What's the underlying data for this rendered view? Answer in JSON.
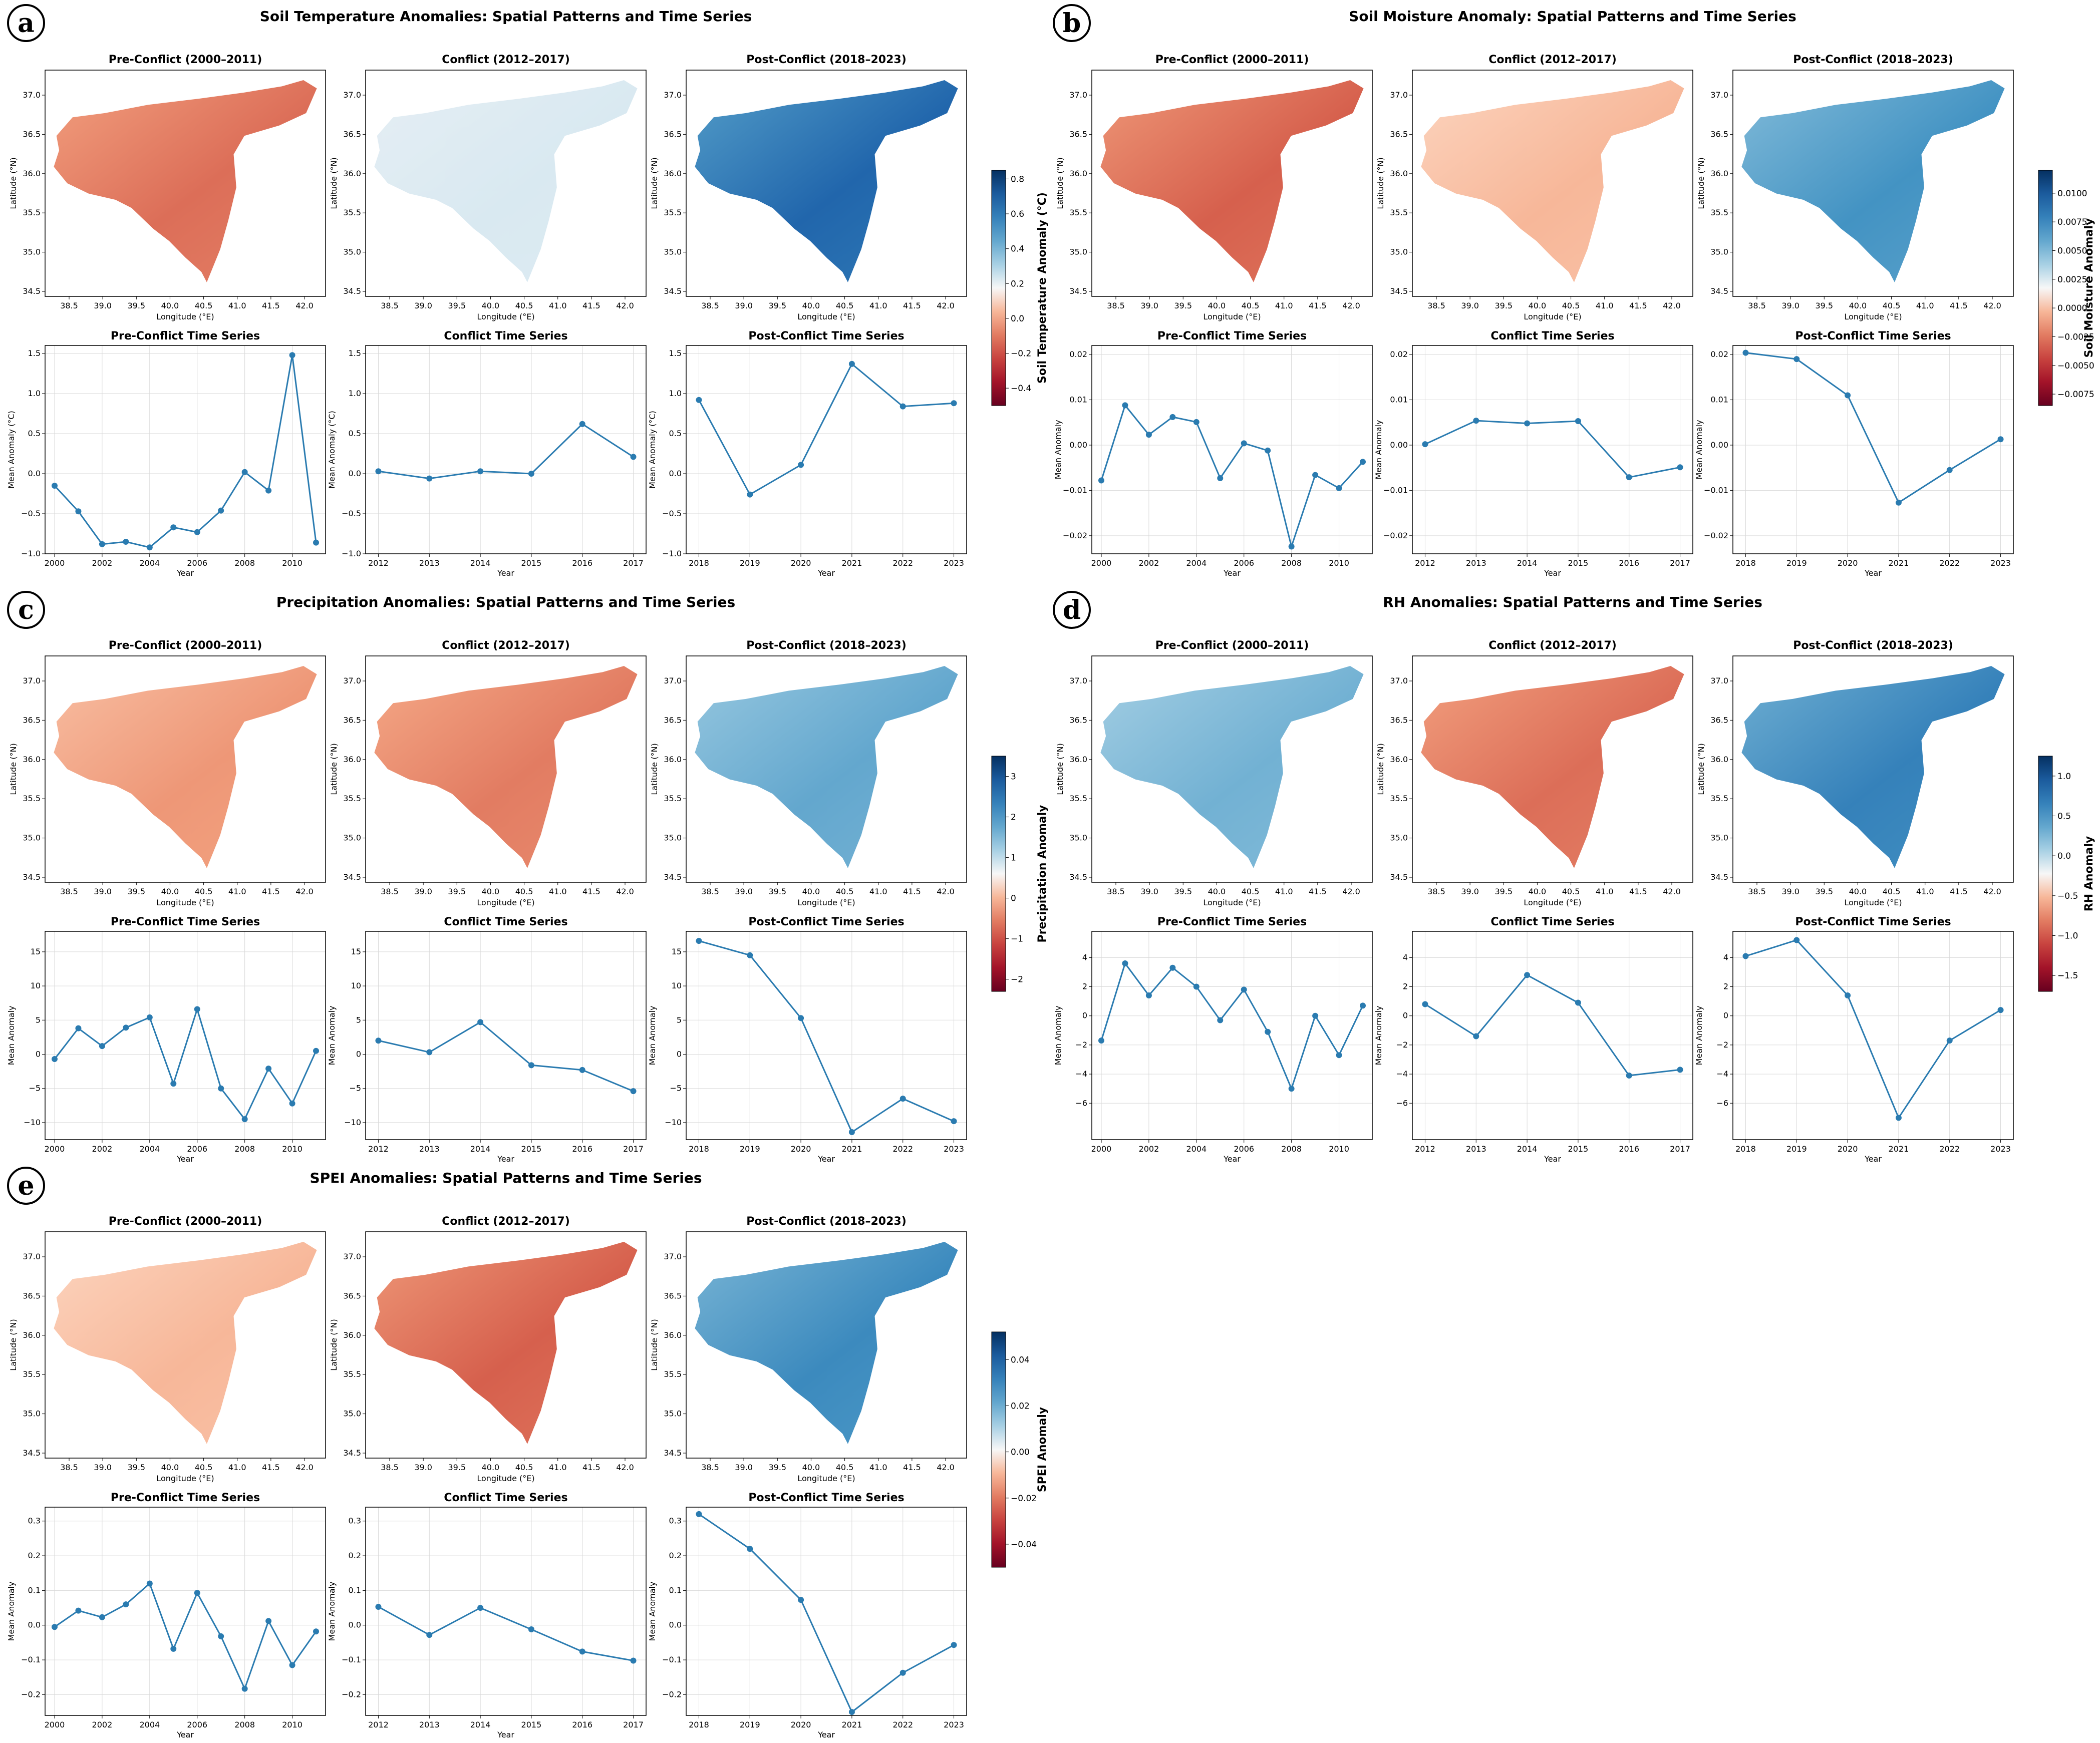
{
  "colors": {
    "line": "#2a7bb0",
    "grid": "#d9d9d9",
    "cmap_neg": "#67001f",
    "cmap_mid": "#f7f7f7",
    "cmap_pos": "#053061"
  },
  "chart_data": [
    {
      "type": "line",
      "panel": "a",
      "title": "Soil Temperature Anomalies: Spatial Patterns and Time Series",
      "map_titles": [
        "Pre-Conflict (2000–2011)",
        "Conflict (2012–2017)",
        "Post-Conflict (2018–2023)"
      ],
      "map_xlabel": "Longitude (°E)",
      "map_ylabel": "Latitude (°N)",
      "map_xticks": [
        "38.5",
        "39.0",
        "39.5",
        "40.0",
        "40.5",
        "41.0",
        "41.5",
        "42.0"
      ],
      "map_yticks": [
        "34.5",
        "35.0",
        "35.5",
        "36.0",
        "36.5",
        "37.0"
      ],
      "map_fill": [
        -0.45,
        0.08,
        0.75
      ],
      "colorbar": {
        "label": "Soil Temperature Anomaly (°C)",
        "range": [
          -0.5,
          0.85
        ],
        "ticks": [
          "0.8",
          "0.6",
          "0.4",
          "0.2",
          "0.0",
          "−0.2",
          "−0.4"
        ],
        "tick_values": [
          0.8,
          0.6,
          0.4,
          0.2,
          0.0,
          -0.2,
          -0.4
        ]
      },
      "series_titles": [
        "Pre-Conflict Time Series",
        "Conflict Time Series",
        "Post-Conflict Time Series"
      ],
      "xlabel": "Year",
      "ylabel": "Mean Anomaly (°C)",
      "ylim": [
        -1.0,
        1.6
      ],
      "yticks": [
        -1.0,
        -0.5,
        0.0,
        0.5,
        1.0,
        1.5
      ],
      "ytick_labels": [
        "−1.0",
        "−0.5",
        "0.0",
        "0.5",
        "1.0",
        "1.5"
      ],
      "series": [
        {
          "name": "Pre-Conflict",
          "x": [
            2000,
            2001,
            2002,
            2003,
            2004,
            2005,
            2006,
            2007,
            2008,
            2009,
            2010,
            2011
          ],
          "values": [
            -0.15,
            -0.47,
            -0.88,
            -0.85,
            -0.92,
            -0.67,
            -0.73,
            -0.46,
            0.02,
            -0.21,
            1.48,
            -0.86
          ],
          "xticks": [
            2000,
            2002,
            2004,
            2006,
            2008,
            2010
          ],
          "xticks_labels": [
            "2000",
            "2002",
            "2004",
            "2006",
            "2008",
            "2010"
          ],
          "xlim": [
            1999.6,
            2011.4
          ]
        },
        {
          "name": "Conflict",
          "x": [
            2012,
            2013,
            2014,
            2015,
            2016,
            2017
          ],
          "values": [
            0.03,
            -0.06,
            0.03,
            0.0,
            0.62,
            0.21
          ],
          "xticks": [
            2012,
            2013,
            2014,
            2015,
            2016,
            2017
          ],
          "xticks_labels": [
            "2012",
            "2013",
            "2014",
            "2015",
            "2016",
            "2017"
          ],
          "xlim": [
            2011.75,
            2017.25
          ]
        },
        {
          "name": "Post-Conflict",
          "x": [
            2018,
            2019,
            2020,
            2021,
            2022,
            2023
          ],
          "values": [
            0.92,
            -0.26,
            0.11,
            1.37,
            0.84,
            0.88
          ],
          "xticks": [
            2018,
            2019,
            2020,
            2021,
            2022,
            2023
          ],
          "xticks_labels": [
            "2018",
            "2019",
            "2020",
            "2021",
            "2022",
            "2023"
          ],
          "xlim": [
            2017.75,
            2023.25
          ]
        }
      ]
    },
    {
      "type": "line",
      "panel": "b",
      "title": "Soil Moisture Anomaly: Spatial Patterns and Time Series",
      "map_titles": [
        "Pre-Conflict (2000–2011)",
        "Conflict (2012–2017)",
        "Post-Conflict (2018–2023)"
      ],
      "map_xlabel": "Longitude (°E)",
      "map_ylabel": "Latitude (°N)",
      "map_xticks": [
        "38.5",
        "39.0",
        "39.5",
        "40.0",
        "40.5",
        "41.0",
        "41.5",
        "42.0"
      ],
      "map_yticks": [
        "34.5",
        "35.0",
        "35.5",
        "36.0",
        "36.5",
        "37.0"
      ],
      "map_fill": [
        -0.5,
        -0.2,
        0.5
      ],
      "colorbar": {
        "label": "Soil Moisture Anomaly",
        "range": [
          -0.0085,
          0.012
        ],
        "ticks": [
          "0.0100",
          "0.0075",
          "0.0050",
          "0.0025",
          "0.0000",
          "−0.0025",
          "−0.0050",
          "−0.0075"
        ],
        "tick_values": [
          0.01,
          0.0075,
          0.005,
          0.0025,
          0.0,
          -0.0025,
          -0.005,
          -0.0075
        ]
      },
      "series_titles": [
        "Pre-Conflict Time Series",
        "Conflict Time Series",
        "Post-Conflict Time Series"
      ],
      "xlabel": "Year",
      "ylabel": "Mean Anomaly",
      "ylim": [
        -0.024,
        0.022
      ],
      "yticks": [
        -0.02,
        -0.01,
        0.0,
        0.01,
        0.02
      ],
      "ytick_labels": [
        "−0.02",
        "−0.01",
        "0.00",
        "0.01",
        "0.02"
      ],
      "series": [
        {
          "name": "Pre-Conflict",
          "x": [
            2000,
            2001,
            2002,
            2003,
            2004,
            2005,
            2006,
            2007,
            2008,
            2009,
            2010,
            2011
          ],
          "values": [
            -0.0078,
            0.0088,
            0.0023,
            0.0062,
            0.0051,
            -0.0073,
            0.0004,
            -0.0012,
            -0.0224,
            -0.0066,
            -0.0095,
            -0.0037
          ],
          "xticks": [
            2000,
            2002,
            2004,
            2006,
            2008,
            2010
          ],
          "xticks_labels": [
            "2000",
            "2002",
            "2004",
            "2006",
            "2008",
            "2010"
          ],
          "xlim": [
            1999.6,
            2011.4
          ]
        },
        {
          "name": "Conflict",
          "x": [
            2012,
            2013,
            2014,
            2015,
            2016,
            2017
          ],
          "values": [
            0.0002,
            0.0054,
            0.0048,
            0.0053,
            -0.0071,
            -0.0049
          ],
          "xticks": [
            2012,
            2013,
            2014,
            2015,
            2016,
            2017
          ],
          "xticks_labels": [
            "2012",
            "2013",
            "2014",
            "2015",
            "2016",
            "2017"
          ],
          "xlim": [
            2011.75,
            2017.25
          ]
        },
        {
          "name": "Post-Conflict",
          "x": [
            2018,
            2019,
            2020,
            2021,
            2022,
            2023
          ],
          "values": [
            0.0204,
            0.019,
            0.011,
            -0.0127,
            -0.0055,
            0.0013
          ],
          "xticks": [
            2018,
            2019,
            2020,
            2021,
            2022,
            2023
          ],
          "xticks_labels": [
            "2018",
            "2019",
            "2020",
            "2021",
            "2022",
            "2023"
          ],
          "xlim": [
            2017.75,
            2023.25
          ]
        }
      ]
    },
    {
      "type": "line",
      "panel": "c",
      "title": "Precipitation Anomalies: Spatial Patterns and Time Series",
      "map_titles": [
        "Pre-Conflict (2000–2011)",
        "Conflict (2012–2017)",
        "Post-Conflict (2018–2023)"
      ],
      "map_xlabel": "Longitude (°E)",
      "map_ylabel": "Latitude (°N)",
      "map_xticks": [
        "38.5",
        "39.0",
        "39.5",
        "40.0",
        "40.5",
        "41.0",
        "41.5",
        "42.0"
      ],
      "map_yticks": [
        "34.5",
        "35.0",
        "35.5",
        "36.0",
        "36.5",
        "37.0"
      ],
      "map_fill": [
        -0.3,
        -0.4,
        0.4
      ],
      "colorbar": {
        "label": "Precipitation Anomaly",
        "range": [
          -2.3,
          3.5
        ],
        "ticks": [
          "3",
          "2",
          "1",
          "0",
          "−1",
          "−2"
        ],
        "tick_values": [
          3,
          2,
          1,
          0,
          -1,
          -2
        ]
      },
      "series_titles": [
        "Pre-Conflict Time Series",
        "Conflict Time Series",
        "Post-Conflict Time Series"
      ],
      "xlabel": "Year",
      "ylabel": "Mean Anomaly",
      "ylim": [
        -12.5,
        18.0
      ],
      "yticks": [
        -10,
        -5,
        0,
        5,
        10,
        15
      ],
      "ytick_labels": [
        "−10",
        "−5",
        "0",
        "5",
        "10",
        "15"
      ],
      "series": [
        {
          "name": "Pre-Conflict",
          "x": [
            2000,
            2001,
            2002,
            2003,
            2004,
            2005,
            2006,
            2007,
            2008,
            2009,
            2010,
            2011
          ],
          "values": [
            -0.7,
            3.8,
            1.2,
            3.9,
            5.4,
            -4.3,
            6.6,
            -5.0,
            -9.5,
            -2.1,
            -7.2,
            0.5
          ],
          "xticks": [
            2000,
            2002,
            2004,
            2006,
            2008,
            2010
          ],
          "xticks_labels": [
            "2000",
            "2002",
            "2004",
            "2006",
            "2008",
            "2010"
          ],
          "xlim": [
            1999.6,
            2011.4
          ]
        },
        {
          "name": "Conflict",
          "x": [
            2012,
            2013,
            2014,
            2015,
            2016,
            2017
          ],
          "values": [
            2.0,
            0.3,
            4.7,
            -1.6,
            -2.3,
            -5.4
          ],
          "xticks": [
            2012,
            2013,
            2014,
            2015,
            2016,
            2017
          ],
          "xticks_labels": [
            "2012",
            "2013",
            "2014",
            "2015",
            "2016",
            "2017"
          ],
          "xlim": [
            2011.75,
            2017.25
          ]
        },
        {
          "name": "Post-Conflict",
          "x": [
            2018,
            2019,
            2020,
            2021,
            2022,
            2023
          ],
          "values": [
            16.6,
            14.5,
            5.3,
            -11.4,
            -6.5,
            -9.8
          ],
          "xticks": [
            2018,
            2019,
            2020,
            2021,
            2022,
            2023
          ],
          "xticks_labels": [
            "2018",
            "2019",
            "2020",
            "2021",
            "2022",
            "2023"
          ],
          "xlim": [
            2017.75,
            2023.25
          ]
        }
      ]
    },
    {
      "type": "line",
      "panel": "d",
      "title": "RH Anomalies: Spatial Patterns and Time Series",
      "map_titles": [
        "Pre-Conflict (2000–2011)",
        "Conflict (2012–2017)",
        "Post-Conflict (2018–2023)"
      ],
      "map_xlabel": "Longitude (°E)",
      "map_ylabel": "Latitude (°N)",
      "map_xticks": [
        "38.5",
        "39.0",
        "39.5",
        "40.0",
        "40.5",
        "41.0",
        "41.5",
        "42.0"
      ],
      "map_yticks": [
        "34.5",
        "35.0",
        "35.5",
        "36.0",
        "36.5",
        "37.0"
      ],
      "map_fill": [
        0.35,
        -0.45,
        0.6
      ],
      "colorbar": {
        "label": "RH Anomaly",
        "range": [
          -1.7,
          1.25
        ],
        "ticks": [
          "1.0",
          "0.5",
          "0.0",
          "−0.5",
          "−1.0",
          "−1.5"
        ],
        "tick_values": [
          1.0,
          0.5,
          0.0,
          -0.5,
          -1.0,
          -1.5
        ]
      },
      "series_titles": [
        "Pre-Conflict Time Series",
        "Conflict Time Series",
        "Post-Conflict Time Series"
      ],
      "xlabel": "Year",
      "ylabel": "Mean Anomaly",
      "ylim": [
        -8.5,
        5.8
      ],
      "yticks": [
        -6,
        -4,
        -2,
        0,
        2,
        4
      ],
      "ytick_labels": [
        "−6",
        "−4",
        "−2",
        "0",
        "2",
        "4"
      ],
      "series": [
        {
          "name": "Pre-Conflict",
          "x": [
            2000,
            2001,
            2002,
            2003,
            2004,
            2005,
            2006,
            2007,
            2008,
            2009,
            2010,
            2011
          ],
          "values": [
            -1.7,
            3.6,
            1.4,
            3.3,
            2.0,
            -0.3,
            1.8,
            -1.1,
            -5.0,
            0.0,
            -2.7,
            0.7
          ],
          "xticks": [
            2000,
            2002,
            2004,
            2006,
            2008,
            2010
          ],
          "xticks_labels": [
            "2000",
            "2002",
            "2004",
            "2006",
            "2008",
            "2010"
          ],
          "xlim": [
            1999.6,
            2011.4
          ]
        },
        {
          "name": "Conflict",
          "x": [
            2012,
            2013,
            2014,
            2015,
            2016,
            2017
          ],
          "values": [
            0.8,
            -1.4,
            2.8,
            0.9,
            -4.1,
            -3.7
          ],
          "xticks": [
            2012,
            2013,
            2014,
            2015,
            2016,
            2017
          ],
          "xticks_labels": [
            "2012",
            "2013",
            "2014",
            "2015",
            "2016",
            "2017"
          ],
          "xlim": [
            2011.75,
            2017.25
          ]
        },
        {
          "name": "Post-Conflict",
          "x": [
            2018,
            2019,
            2020,
            2021,
            2022,
            2023
          ],
          "values": [
            4.1,
            5.2,
            1.4,
            -7.0,
            -1.7,
            0.4
          ],
          "xticks": [
            2018,
            2019,
            2020,
            2021,
            2022,
            2023
          ],
          "xticks_labels": [
            "2018",
            "2019",
            "2020",
            "2021",
            "2022",
            "2023"
          ],
          "xlim": [
            2017.75,
            2023.25
          ]
        }
      ]
    },
    {
      "type": "line",
      "panel": "e",
      "title": "SPEI Anomalies: Spatial Patterns and Time Series",
      "map_titles": [
        "Pre-Conflict (2000–2011)",
        "Conflict (2012–2017)",
        "Post-Conflict (2018–2023)"
      ],
      "map_xlabel": "Longitude (°E)",
      "map_ylabel": "Latitude (°N)",
      "map_xticks": [
        "38.5",
        "39.0",
        "39.5",
        "40.0",
        "40.5",
        "41.0",
        "41.5",
        "42.0"
      ],
      "map_yticks": [
        "34.5",
        "35.0",
        "35.5",
        "36.0",
        "36.5",
        "37.0"
      ],
      "map_fill": [
        -0.2,
        -0.5,
        0.55
      ],
      "colorbar": {
        "label": "SPEI Anomaly",
        "range": [
          -0.05,
          0.052
        ],
        "ticks": [
          "0.04",
          "0.02",
          "0.00",
          "−0.02",
          "−0.04"
        ],
        "tick_values": [
          0.04,
          0.02,
          0.0,
          -0.02,
          -0.04
        ]
      },
      "series_titles": [
        "Pre-Conflict Time Series",
        "Conflict Time Series",
        "Post-Conflict Time Series"
      ],
      "xlabel": "Year",
      "ylabel": "Mean Anomaly",
      "ylim": [
        -0.26,
        0.34
      ],
      "yticks": [
        -0.2,
        -0.1,
        0.0,
        0.1,
        0.2,
        0.3
      ],
      "ytick_labels": [
        "−0.2",
        "−0.1",
        "0.0",
        "0.1",
        "0.2",
        "0.3"
      ],
      "series": [
        {
          "name": "Pre-Conflict",
          "x": [
            2000,
            2001,
            2002,
            2003,
            2004,
            2005,
            2006,
            2007,
            2008,
            2009,
            2010,
            2011
          ],
          "values": [
            -0.005,
            0.042,
            0.023,
            0.06,
            0.12,
            -0.068,
            0.093,
            -0.032,
            -0.183,
            0.012,
            -0.115,
            -0.018
          ],
          "xticks": [
            2000,
            2002,
            2004,
            2006,
            2008,
            2010
          ],
          "xticks_labels": [
            "2000",
            "2002",
            "2004",
            "2006",
            "2008",
            "2010"
          ],
          "xlim": [
            1999.6,
            2011.4
          ]
        },
        {
          "name": "Conflict",
          "x": [
            2012,
            2013,
            2014,
            2015,
            2016,
            2017
          ],
          "values": [
            0.053,
            -0.028,
            0.05,
            -0.012,
            -0.076,
            -0.102
          ],
          "xticks": [
            2012,
            2013,
            2014,
            2015,
            2016,
            2017
          ],
          "xticks_labels": [
            "2012",
            "2013",
            "2014",
            "2015",
            "2016",
            "2017"
          ],
          "xlim": [
            2011.75,
            2017.25
          ]
        },
        {
          "name": "Post-Conflict",
          "x": [
            2018,
            2019,
            2020,
            2021,
            2022,
            2023
          ],
          "values": [
            0.32,
            0.22,
            0.073,
            -0.25,
            -0.137,
            -0.057
          ],
          "xticks": [
            2018,
            2019,
            2020,
            2021,
            2022,
            2023
          ],
          "xticks_labels": [
            "2018",
            "2019",
            "2020",
            "2021",
            "2022",
            "2023"
          ],
          "xlim": [
            2017.75,
            2023.25
          ]
        }
      ]
    }
  ]
}
